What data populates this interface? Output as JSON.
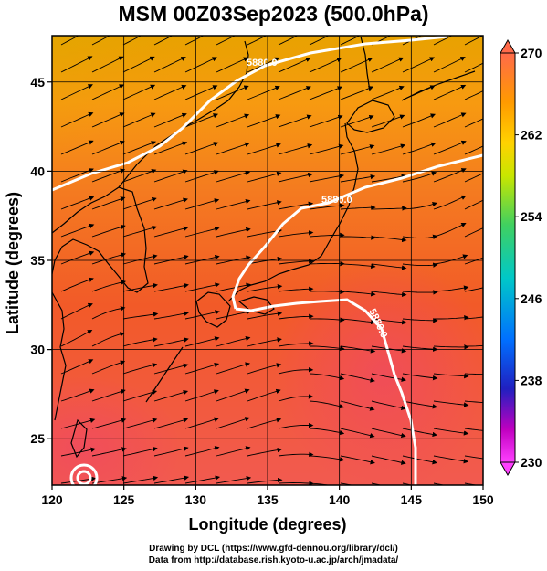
{
  "title": "MSM 00Z03Sep2023 (500.0hPa)",
  "axes": {
    "xlabel": "Longitude (degrees)",
    "ylabel": "Latitude  (degrees)",
    "xticks": [
      "120",
      "125",
      "130",
      "135",
      "140",
      "145",
      "150"
    ],
    "yticks": [
      "25",
      "30",
      "35",
      "40",
      "45"
    ]
  },
  "colorbar": {
    "labels": [
      "270",
      "262",
      "254",
      "246",
      "238",
      "230"
    ],
    "colors": [
      "#ff6a4a",
      "#ff9a00",
      "#ffd200",
      "#c8e600",
      "#40d060",
      "#00c8c8",
      "#0070ff",
      "#2020c0",
      "#c000c0",
      "#ff40ff"
    ]
  },
  "contours": [
    {
      "label": "5880.0"
    },
    {
      "label": "5880.0"
    },
    {
      "label": "5880.0"
    }
  ],
  "footer": {
    "line1": "Drawing by DCL (https://www.gfd-dennou.org/library/dcl/)",
    "line2": "Data from http://database.rish.kyoto-u.ac.jp/arch/jmadata/"
  },
  "chart_data": {
    "type": "heatmap",
    "title": "MSM 00Z03Sep2023 (500.0hPa)",
    "xlabel": "Longitude (degrees)",
    "ylabel": "Latitude  (degrees)",
    "xlim": [
      120,
      150
    ],
    "ylim": [
      22.4,
      47.6
    ],
    "color_range": [
      230,
      270
    ],
    "colorbar_ticks": [
      270,
      262,
      254,
      246,
      238,
      230
    ],
    "contour_value": 5880.0,
    "grid": true
  }
}
